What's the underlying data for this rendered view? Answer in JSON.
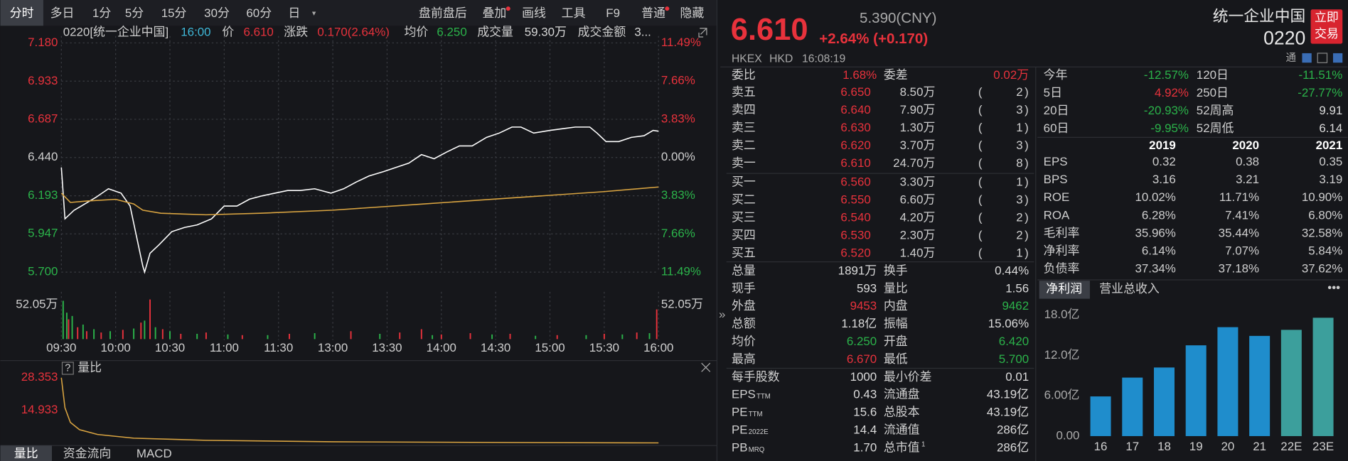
{
  "toolbar": {
    "periods": [
      "分时",
      "多日",
      "1分",
      "5分",
      "15分",
      "30分",
      "60分",
      "日"
    ],
    "tools": [
      "盘前盘后",
      "叠加",
      "画线",
      "工具",
      "F9",
      "普通",
      "隐藏"
    ]
  },
  "quote_line": {
    "code": "0220[统一企业中国]",
    "time": "16:00",
    "items": [
      {
        "label": "价",
        "value": "6.610",
        "color": "#e8323c"
      },
      {
        "label": "涨跌",
        "value": "0.170(2.64%)",
        "color": "#e8323c"
      },
      {
        "label": "均价",
        "value": "6.250",
        "color": "#2bb34a"
      },
      {
        "label": "成交量",
        "value": "59.30万",
        "color": "#d8d8d8"
      },
      {
        "label": "成交金额",
        "value": "3...",
        "color": "#d8d8d8"
      }
    ]
  },
  "chart_data": [
    {
      "type": "line",
      "xlim": [
        0,
        330
      ],
      "ylim": [
        5.7,
        7.18
      ],
      "y2lim": [
        -11.49,
        11.49
      ],
      "grid": true,
      "yticks": [
        {
          "value": 7.18,
          "label": "7.180"
        },
        {
          "value": 6.933,
          "label": "6.933"
        },
        {
          "value": 6.687,
          "label": "6.687"
        },
        {
          "value": 6.44,
          "label": "6.440"
        },
        {
          "value": 6.193,
          "label": "6.193"
        },
        {
          "value": 5.947,
          "label": "5.947"
        },
        {
          "value": 5.7,
          "label": "5.700"
        }
      ],
      "y2ticks": [
        {
          "value": 11.49,
          "label": "11.49%"
        },
        {
          "value": 7.66,
          "label": "7.66%"
        },
        {
          "value": 3.83,
          "label": "3.83%"
        },
        {
          "value": 0,
          "label": "0.00%"
        },
        {
          "value": -3.83,
          "label": "3.83%"
        },
        {
          "value": -7.66,
          "label": "7.66%"
        },
        {
          "value": -11.49,
          "label": "11.49%"
        }
      ],
      "xticks": [
        {
          "value": 0,
          "label": "09:30"
        },
        {
          "value": 30,
          "label": "10:00"
        },
        {
          "value": 60,
          "label": "10:30"
        },
        {
          "value": 90,
          "label": "11:00"
        },
        {
          "value": 120,
          "label": "11:30"
        },
        {
          "value": 150,
          "label": "13:00"
        },
        {
          "value": 180,
          "label": "13:30"
        },
        {
          "value": 210,
          "label": "14:00"
        },
        {
          "value": 240,
          "label": "14:30"
        },
        {
          "value": 270,
          "label": "15:00"
        },
        {
          "value": 300,
          "label": "15:30"
        },
        {
          "value": 330,
          "label": "16:00"
        }
      ],
      "series": [
        {
          "color": "#ffffff",
          "x": [
            0,
            2,
            7,
            11,
            19,
            26,
            33,
            38,
            41,
            45,
            46,
            49,
            54,
            61,
            68,
            75,
            83,
            90,
            97,
            104,
            111,
            118,
            125,
            132,
            140,
            149,
            156,
            163,
            170,
            178,
            185,
            192,
            199,
            206,
            213,
            220,
            227,
            235,
            242,
            249,
            254,
            261,
            270,
            277,
            284,
            292,
            296,
            301,
            308,
            315,
            322,
            327,
            330
          ],
          "values": [
            6.376,
            6.044,
            6.099,
            6.127,
            6.182,
            6.238,
            6.21,
            6.127,
            5.961,
            5.739,
            5.7,
            5.822,
            5.877,
            5.961,
            5.988,
            6.005,
            6.044,
            6.127,
            6.127,
            6.171,
            6.193,
            6.21,
            6.227,
            6.227,
            6.238,
            6.21,
            6.238,
            6.282,
            6.321,
            6.349,
            6.376,
            6.404,
            6.459,
            6.432,
            6.476,
            6.515,
            6.515,
            6.57,
            6.598,
            6.637,
            6.637,
            6.598,
            6.615,
            6.626,
            6.637,
            6.637,
            6.598,
            6.543,
            6.543,
            6.57,
            6.581,
            6.615,
            6.61
          ]
        },
        {
          "color": "#d9a441",
          "x": [
            0,
            5,
            15,
            30,
            40,
            45,
            55,
            80,
            110,
            150,
            200,
            250,
            300,
            330
          ],
          "values": [
            6.21,
            6.15,
            6.16,
            6.17,
            6.14,
            6.1,
            6.08,
            6.07,
            6.08,
            6.1,
            6.14,
            6.18,
            6.22,
            6.25
          ]
        }
      ]
    },
    {
      "type": "bar",
      "xlim": [
        0,
        330
      ],
      "ylim": [
        0,
        65
      ],
      "y2lim": [
        0,
        65
      ],
      "yticks": [
        {
          "value": 52.05,
          "label": "52.05万"
        }
      ],
      "y2ticks": [
        {
          "value": 52.05,
          "label": "52.05万"
        }
      ],
      "series": [
        {
          "color": "#e8323c",
          "x": [
            4,
            9,
            14,
            22,
            34,
            44,
            49,
            56,
            66,
            80,
            100,
            126,
            160,
            187,
            199,
            210,
            226,
            248,
            274,
            300,
            318,
            329
          ],
          "values": [
            30,
            18,
            12,
            10,
            14,
            25,
            60,
            15,
            8,
            10,
            6,
            8,
            12,
            10,
            15,
            7,
            9,
            8,
            6,
            8,
            10,
            45
          ]
        },
        {
          "color": "#2bb34a",
          "x": [
            1,
            3,
            6,
            12,
            18,
            27,
            40,
            46,
            52,
            60,
            75,
            92,
            114,
            140,
            176,
            205,
            238,
            262,
            290,
            310,
            325
          ],
          "values": [
            58,
            40,
            35,
            22,
            15,
            12,
            16,
            28,
            18,
            12,
            8,
            7,
            6,
            9,
            8,
            6,
            7,
            5,
            6,
            7,
            9
          ]
        }
      ]
    },
    {
      "type": "line",
      "title": "量比",
      "help": "?",
      "xlim": [
        0,
        330
      ],
      "ylim": [
        1.513,
        28.353
      ],
      "yticks": [
        28.353,
        14.933
      ],
      "tick_color": "#e8323c",
      "series": [
        {
          "color": "#d9a441",
          "x": [
            0,
            2,
            5,
            10,
            20,
            40,
            80,
            150,
            250,
            330
          ],
          "values": [
            28.353,
            16,
            10,
            7,
            5,
            3.5,
            2.6,
            2,
            1.7,
            1.55
          ]
        }
      ]
    },
    {
      "type": "bar",
      "categories": [
        "16",
        "17",
        "18",
        "19",
        "20",
        "21",
        "22E",
        "23E"
      ],
      "values": [
        5.9,
        8.7,
        10.2,
        13.5,
        16.2,
        14.9,
        15.8,
        17.6
      ],
      "colors": [
        "#1f8dcc",
        "#1f8dcc",
        "#1f8dcc",
        "#1f8dcc",
        "#1f8dcc",
        "#1f8dcc",
        "#3c9f9c",
        "#3c9f9c"
      ],
      "ylim": [
        0,
        18
      ],
      "yticks": [
        {
          "value": 18,
          "label": "18.0亿"
        },
        {
          "value": 12,
          "label": "12.0亿"
        },
        {
          "value": 6,
          "label": "6.00亿"
        },
        {
          "value": 0,
          "label": "0.00"
        }
      ]
    }
  ],
  "bottom_tabs": [
    "量比",
    "资金流向",
    "MACD"
  ],
  "collapse": "»",
  "header": {
    "price": "6.610",
    "ref": "5.390(CNY)",
    "change": "+2.64% (+0.170)",
    "name": "统一企业中国",
    "code": "0220",
    "trade_button": [
      "立即",
      "交易"
    ],
    "exchange": "HKEX",
    "currency": "HKD",
    "time": "16:08:19",
    "connect": "通"
  },
  "order_book": {
    "ratio": {
      "label": "委比",
      "value": "1.68%"
    },
    "diff": {
      "label": "委差",
      "value": "0.02万"
    },
    "bracket": [
      "(",
      ")"
    ],
    "price_color": "#e8323c",
    "levels": [
      {
        "label": "卖五",
        "price": "6.650",
        "volume": "8.50万",
        "count": 2
      },
      {
        "label": "卖四",
        "price": "6.640",
        "volume": "7.90万",
        "count": 3
      },
      {
        "label": "卖三",
        "price": "6.630",
        "volume": "1.30万",
        "count": 1
      },
      {
        "label": "卖二",
        "price": "6.620",
        "volume": "3.70万",
        "count": 3
      },
      {
        "label": "卖一",
        "price": "6.610",
        "volume": "24.70万",
        "count": 8
      },
      {
        "label": "买一",
        "price": "6.560",
        "volume": "3.30万",
        "count": 1
      },
      {
        "label": "买二",
        "price": "6.550",
        "volume": "6.60万",
        "count": 3
      },
      {
        "label": "买三",
        "price": "6.540",
        "volume": "4.20万",
        "count": 2
      },
      {
        "label": "买四",
        "price": "6.530",
        "volume": "2.30万",
        "count": 2
      },
      {
        "label": "买五",
        "price": "6.520",
        "volume": "1.40万",
        "count": 1
      }
    ]
  },
  "stats": [
    [
      {
        "label": "总量",
        "value": "1891万"
      },
      {
        "label": "换手",
        "value": "0.44%"
      }
    ],
    [
      {
        "label": "现手",
        "value": "593"
      },
      {
        "label": "量比",
        "value": "1.56"
      }
    ],
    [
      {
        "label": "外盘",
        "value": "9453",
        "color": "#e8323c"
      },
      {
        "label": "内盘",
        "value": "9462",
        "color": "#2bb34a"
      }
    ],
    [
      {
        "label": "总额",
        "value": "1.18亿"
      },
      {
        "label": "振幅",
        "value": "15.06%"
      }
    ],
    [
      {
        "label": "均价",
        "value": "6.250",
        "color": "#2bb34a"
      },
      {
        "label": "开盘",
        "value": "6.420",
        "color": "#2bb34a"
      }
    ],
    [
      {
        "label": "最高",
        "value": "6.670",
        "color": "#e8323c"
      },
      {
        "label": "最低",
        "value": "5.700",
        "color": "#2bb34a"
      }
    ],
    [
      {
        "label": "每手股数",
        "value": "1000"
      },
      {
        "label": "最小价差",
        "value": "0.01"
      }
    ],
    [
      {
        "label": "EPS",
        "sub": "TTM",
        "value": "0.43"
      },
      {
        "label": "流通盘",
        "value": "43.19亿"
      }
    ],
    [
      {
        "label": "PE",
        "sub": "TTM",
        "value": "15.6"
      },
      {
        "label": "总股本",
        "value": "43.19亿"
      }
    ],
    [
      {
        "label": "PE",
        "sub": "2022E",
        "value": "14.4"
      },
      {
        "label": "流通值",
        "value": "286亿"
      }
    ],
    [
      {
        "label": "PB",
        "sub": "MRQ",
        "value": "1.70"
      },
      {
        "label": "总市值",
        "sup": "1",
        "value": "286亿"
      }
    ]
  ],
  "performance": [
    [
      {
        "label": "今年",
        "value": "-12.57%",
        "color": "#2bb34a"
      },
      {
        "label": "120日",
        "value": "-11.51%",
        "color": "#2bb34a"
      }
    ],
    [
      {
        "label": "5日",
        "value": "4.92%",
        "color": "#e8323c"
      },
      {
        "label": "250日",
        "value": "-27.77%",
        "color": "#2bb34a"
      }
    ],
    [
      {
        "label": "20日",
        "value": "-20.93%",
        "color": "#2bb34a"
      },
      {
        "label": "52周高",
        "value": "9.91"
      }
    ],
    [
      {
        "label": "60日",
        "value": "-9.95%",
        "color": "#2bb34a"
      },
      {
        "label": "52周低",
        "value": "6.14"
      }
    ]
  ],
  "fundamentals": {
    "years": [
      "2019",
      "2020",
      "2021"
    ],
    "rows": [
      {
        "label": "EPS",
        "values": [
          "0.32",
          "0.38",
          "0.35"
        ]
      },
      {
        "label": "BPS",
        "values": [
          "3.16",
          "3.21",
          "3.19"
        ]
      },
      {
        "label": "ROE",
        "values": [
          "10.02%",
          "11.71%",
          "10.90%"
        ]
      },
      {
        "label": "ROA",
        "values": [
          "6.28%",
          "7.41%",
          "6.80%"
        ]
      },
      {
        "label": "毛利率",
        "values": [
          "35.96%",
          "35.44%",
          "32.58%"
        ]
      },
      {
        "label": "净利率",
        "values": [
          "6.14%",
          "7.07%",
          "5.84%"
        ]
      },
      {
        "label": "负债率",
        "values": [
          "37.34%",
          "37.18%",
          "37.62%"
        ]
      }
    ]
  },
  "finance_tabs": {
    "tabs": [
      "净利润",
      "营业总收入"
    ],
    "more": "•••"
  }
}
